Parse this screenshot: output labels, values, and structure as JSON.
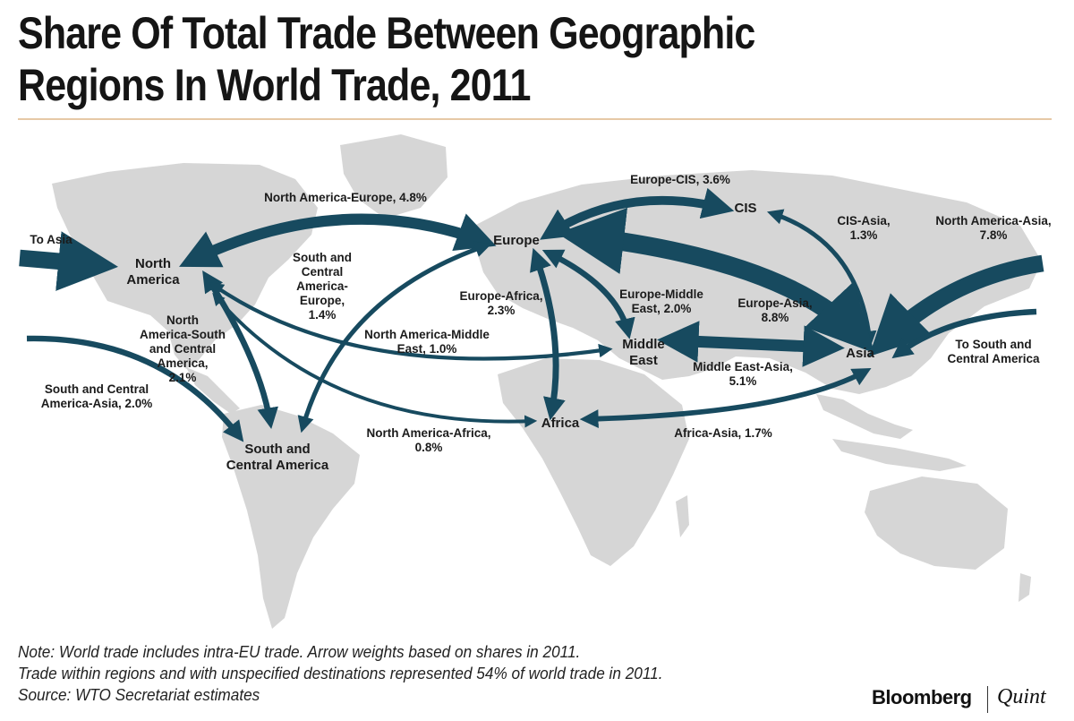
{
  "title": {
    "line1": "Share Of Total Trade Between Geographic",
    "line2": "Regions In World Trade, 2011"
  },
  "colors": {
    "arrow": "#174a5f",
    "land": "#d6d6d6",
    "rule": "#e6c9a6"
  },
  "regions": {
    "north_america": "North\nAmerica",
    "europe": "Europe",
    "cis": "CIS",
    "asia": "Asia",
    "middle_east": "Middle\nEast",
    "africa": "Africa",
    "south_central_america": "South and\nCentral America"
  },
  "flows": [
    {
      "id": "na-eu",
      "label": "North America-Europe, 4.8%",
      "share": 4.8
    },
    {
      "id": "eu-cis",
      "label": "Europe-CIS, 3.6%",
      "share": 3.6
    },
    {
      "id": "cis-asia",
      "label": "CIS-Asia,\n1.3%",
      "share": 1.3
    },
    {
      "id": "na-asia",
      "label": "North America-Asia,\n7.8%",
      "share": 7.8
    },
    {
      "id": "sca-eu",
      "label": "South and\nCentral\nAmerica-\nEurope,\n1.4%",
      "share": 1.4
    },
    {
      "id": "eu-af",
      "label": "Europe-Africa,\n2.3%",
      "share": 2.3
    },
    {
      "id": "eu-me",
      "label": "Europe-Middle\nEast, 2.0%",
      "share": 2.0
    },
    {
      "id": "eu-asia",
      "label": "Europe-Asia,\n8.8%",
      "share": 8.8
    },
    {
      "id": "na-sca",
      "label": "North\nAmerica-South\nand Central\nAmerica,\n2.1%",
      "share": 2.1
    },
    {
      "id": "na-me",
      "label": "North America-Middle\nEast, 1.0%",
      "share": 1.0
    },
    {
      "id": "me-asia",
      "label": "Middle East-Asia,\n5.1%",
      "share": 5.1
    },
    {
      "id": "sca-asia",
      "label": "South and Central\nAmerica-Asia, 2.0%",
      "share": 2.0
    },
    {
      "id": "na-af",
      "label": "North America-Africa,\n0.8%",
      "share": 0.8
    },
    {
      "id": "af-asia",
      "label": "Africa-Asia, 1.7%",
      "share": 1.7
    }
  ],
  "side_labels": {
    "to_asia": "To Asia",
    "to_sca": "To South and\nCentral America"
  },
  "notes": [
    "Note: World trade includes intra-EU trade. Arrow weights based on shares in 2011.",
    "Trade within regions and with unspecified destinations represented 54% of world trade in 2011.",
    "Source: WTO Secretariat estimates"
  ],
  "brand": {
    "name": "Bloomberg",
    "partner": "Quint"
  }
}
